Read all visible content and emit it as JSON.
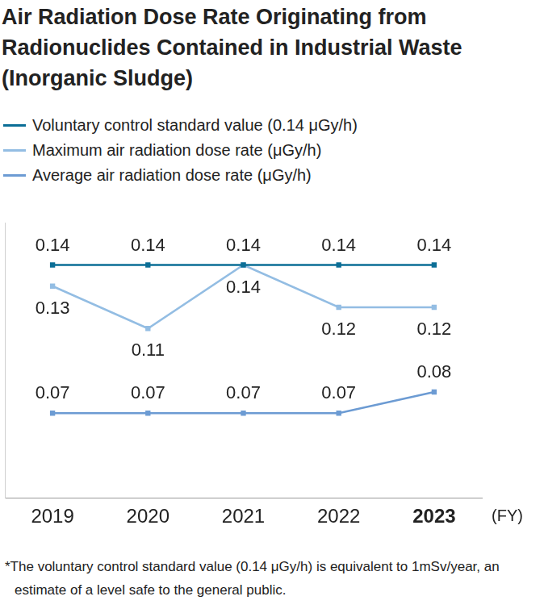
{
  "chart_data": {
    "type": "line",
    "title": "Air Radiation Dose Rate Originating from Radionuclides Contained in Industrial Waste (Inorganic Sludge)",
    "categories": [
      "2019",
      "2020",
      "2021",
      "2022",
      "2023"
    ],
    "x_label": "(FY)",
    "series": [
      {
        "name": "Voluntary control standard value (0.14 μGy/h)",
        "color": "#0b6e96",
        "values": [
          0.14,
          0.14,
          0.14,
          0.14,
          0.14
        ]
      },
      {
        "name": "Maximum air radiation dose rate (μGy/h)",
        "color": "#93bde3",
        "values": [
          0.13,
          0.11,
          0.14,
          0.12,
          0.12
        ]
      },
      {
        "name": "Average air radiation dose rate (μGy/h)",
        "color": "#6c9bd3",
        "values": [
          0.07,
          0.07,
          0.07,
          0.07,
          0.08
        ]
      }
    ],
    "marker": "square",
    "ylim": [
      0.03,
      0.16
    ],
    "legend": "top-left",
    "data_labels": true,
    "tick_labels": "x",
    "grid": false,
    "footnote": "*The voluntary control standard value (0.14 μGy/h) is equivalent to 1mSv/year, an estimate of a level safe to the general public."
  }
}
